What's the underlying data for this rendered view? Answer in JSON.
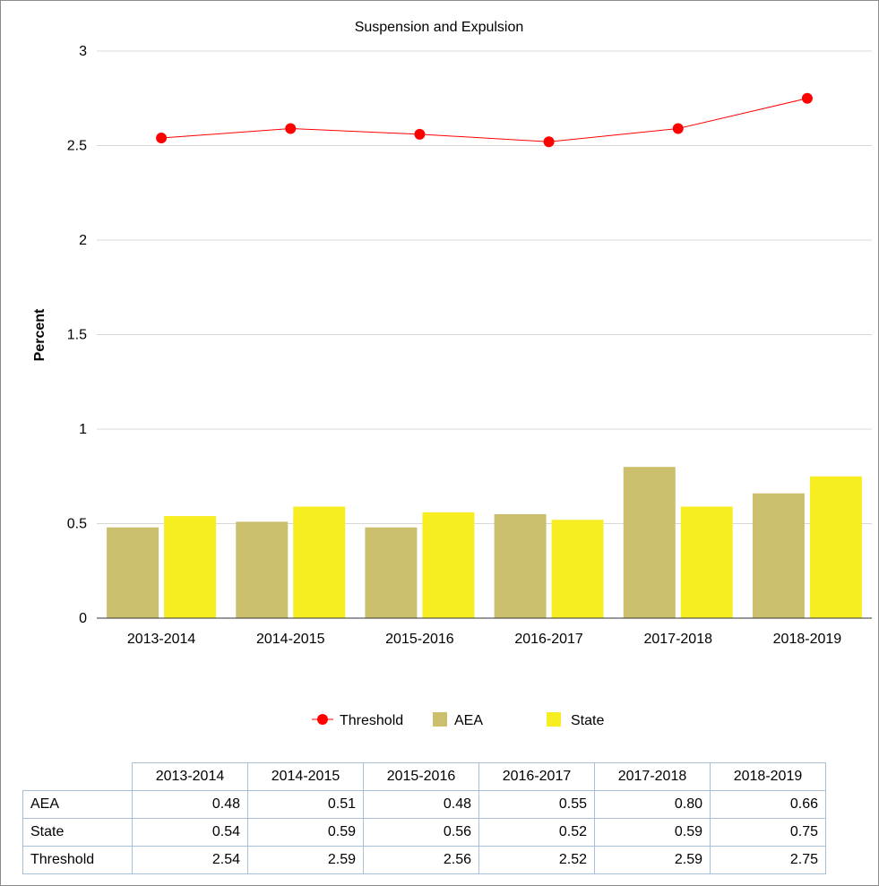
{
  "chart_data": {
    "type": "bar",
    "title": "Suspension and Expulsion",
    "xlabel": "",
    "ylabel": "Percent",
    "ylim": [
      0,
      3
    ],
    "yticks": [
      "0",
      "0.5",
      "1",
      "1.5",
      "2",
      "2.5",
      "3"
    ],
    "grid": true,
    "legend_position": "bottom",
    "categories": [
      "2013-2014",
      "2014-2015",
      "2015-2016",
      "2016-2017",
      "2017-2018",
      "2018-2019"
    ],
    "series": [
      {
        "name": "AEA",
        "kind": "bar",
        "color": "#cbbf6e",
        "values": [
          0.48,
          0.51,
          0.48,
          0.55,
          0.8,
          0.66
        ]
      },
      {
        "name": "State",
        "kind": "bar",
        "color": "#f7ee22",
        "values": [
          0.54,
          0.59,
          0.56,
          0.52,
          0.59,
          0.75
        ]
      },
      {
        "name": "Threshold",
        "kind": "line",
        "color": "#ff0000",
        "values": [
          2.54,
          2.59,
          2.56,
          2.52,
          2.59,
          2.75
        ]
      }
    ]
  },
  "legend": {
    "items": [
      {
        "label": "Threshold",
        "color": "#ff0000",
        "marker": "line-dot"
      },
      {
        "label": "AEA",
        "color": "#cbbf6e",
        "marker": "square"
      },
      {
        "label": "State",
        "color": "#f7ee22",
        "marker": "square"
      }
    ]
  },
  "table": {
    "columns": [
      "2013-2014",
      "2014-2015",
      "2015-2016",
      "2016-2017",
      "2017-2018",
      "2018-2019"
    ],
    "rows": [
      {
        "label": "AEA",
        "values": [
          "0.48",
          "0.51",
          "0.48",
          "0.55",
          "0.80",
          "0.66"
        ]
      },
      {
        "label": "State",
        "values": [
          "0.54",
          "0.59",
          "0.56",
          "0.52",
          "0.59",
          "0.75"
        ]
      },
      {
        "label": "Threshold",
        "values": [
          "2.54",
          "2.59",
          "2.56",
          "2.52",
          "2.59",
          "2.75"
        ]
      }
    ]
  }
}
